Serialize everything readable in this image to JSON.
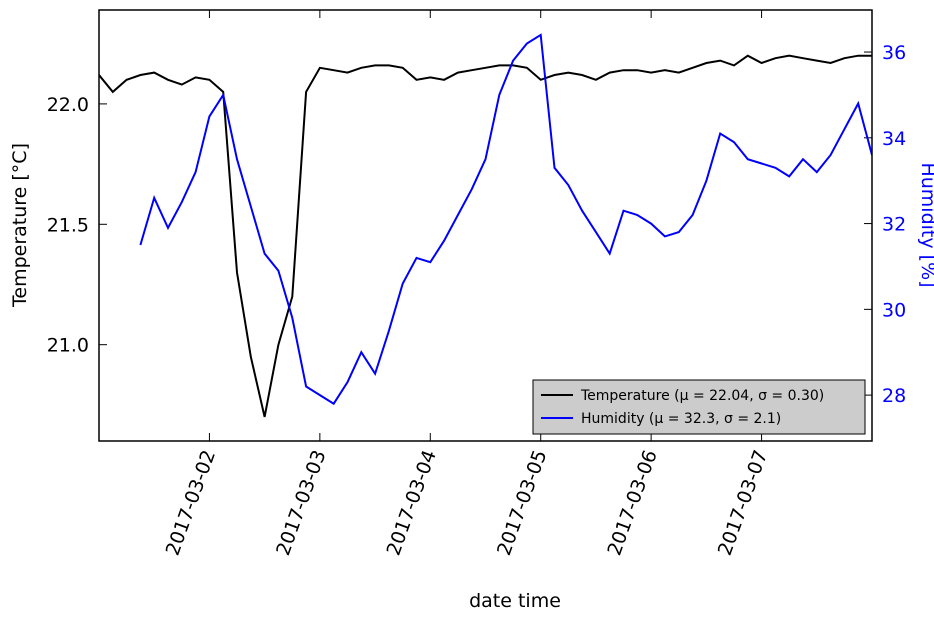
{
  "chart_data": {
    "type": "line",
    "xlabel": "date time",
    "ylabel": "Temperature [°C]",
    "y2label": "Humidity [%]",
    "x": [
      "2017-03-01 00:00",
      "2017-03-01 03:00",
      "2017-03-01 06:00",
      "2017-03-01 09:00",
      "2017-03-01 12:00",
      "2017-03-01 15:00",
      "2017-03-01 18:00",
      "2017-03-01 21:00",
      "2017-03-02 00:00",
      "2017-03-02 03:00",
      "2017-03-02 06:00",
      "2017-03-02 09:00",
      "2017-03-02 12:00",
      "2017-03-02 15:00",
      "2017-03-02 18:00",
      "2017-03-02 21:00",
      "2017-03-03 00:00",
      "2017-03-03 03:00",
      "2017-03-03 06:00",
      "2017-03-03 09:00",
      "2017-03-03 12:00",
      "2017-03-03 15:00",
      "2017-03-03 18:00",
      "2017-03-03 21:00",
      "2017-03-04 00:00",
      "2017-03-04 03:00",
      "2017-03-04 06:00",
      "2017-03-04 09:00",
      "2017-03-04 12:00",
      "2017-03-04 15:00",
      "2017-03-04 18:00",
      "2017-03-04 21:00",
      "2017-03-05 00:00",
      "2017-03-05 03:00",
      "2017-03-05 06:00",
      "2017-03-05 09:00",
      "2017-03-05 12:00",
      "2017-03-05 15:00",
      "2017-03-05 18:00",
      "2017-03-05 21:00",
      "2017-03-06 00:00",
      "2017-03-06 03:00",
      "2017-03-06 06:00",
      "2017-03-06 09:00",
      "2017-03-06 12:00",
      "2017-03-06 15:00",
      "2017-03-06 18:00",
      "2017-03-06 21:00",
      "2017-03-07 00:00",
      "2017-03-07 03:00",
      "2017-03-07 06:00",
      "2017-03-07 09:00",
      "2017-03-07 12:00",
      "2017-03-07 15:00",
      "2017-03-07 18:00",
      "2017-03-07 21:00",
      "2017-03-08 00:00"
    ],
    "series": [
      {
        "name": "Temperature (μ = 22.04, σ = 0.30)",
        "color": "#000000",
        "axis": "y",
        "values": [
          22.12,
          22.05,
          22.1,
          22.12,
          22.13,
          22.1,
          22.08,
          22.11,
          22.1,
          22.05,
          21.3,
          20.95,
          20.7,
          21.0,
          21.2,
          22.05,
          22.15,
          22.14,
          22.13,
          22.15,
          22.16,
          22.16,
          22.15,
          22.1,
          22.11,
          22.1,
          22.13,
          22.14,
          22.15,
          22.16,
          22.16,
          22.15,
          22.1,
          22.12,
          22.13,
          22.12,
          22.1,
          22.13,
          22.14,
          22.14,
          22.13,
          22.14,
          22.13,
          22.15,
          22.17,
          22.18,
          22.16,
          22.2,
          22.17,
          22.19,
          22.2,
          22.19,
          22.18,
          22.17,
          22.19,
          22.2,
          22.2
        ]
      },
      {
        "name": "Humidity (μ = 32.3, σ = 2.1)",
        "color": "#0000ff",
        "axis": "y2",
        "values": [
          null,
          null,
          null,
          31.5,
          32.6,
          31.9,
          32.5,
          33.2,
          34.5,
          35,
          33.5,
          32.4,
          31.3,
          30.9,
          29.8,
          28.2,
          28,
          27.8,
          28.3,
          29,
          28.5,
          29.5,
          30.6,
          31.2,
          31.1,
          31.6,
          32.2,
          32.8,
          33.5,
          35,
          35.8,
          36.2,
          36.4,
          33.3,
          32.9,
          32.3,
          31.8,
          31.3,
          32.3,
          32.2,
          32,
          31.7,
          31.8,
          32.2,
          33,
          34.1,
          33.9,
          33.5,
          33.4,
          33.3,
          33.1,
          33.5,
          33.2,
          33.6,
          34.2,
          34.8,
          33.6
        ]
      }
    ],
    "xlim": [
      "2017-03-01",
      "2017-03-08"
    ],
    "xticks": [
      "2017-03-02",
      "2017-03-03",
      "2017-03-04",
      "2017-03-05",
      "2017-03-06",
      "2017-03-07"
    ],
    "ylim": [
      20.6,
      22.39
    ],
    "yticks": [
      {
        "value": 21,
        "label": "21.0"
      },
      21.5,
      {
        "value": 22,
        "label": "22.0"
      }
    ],
    "y2lim": [
      26.93,
      36.98
    ],
    "y2ticks": [
      28,
      30,
      32,
      34,
      36
    ],
    "y2color": "#0000ff",
    "legend": "lower right"
  }
}
